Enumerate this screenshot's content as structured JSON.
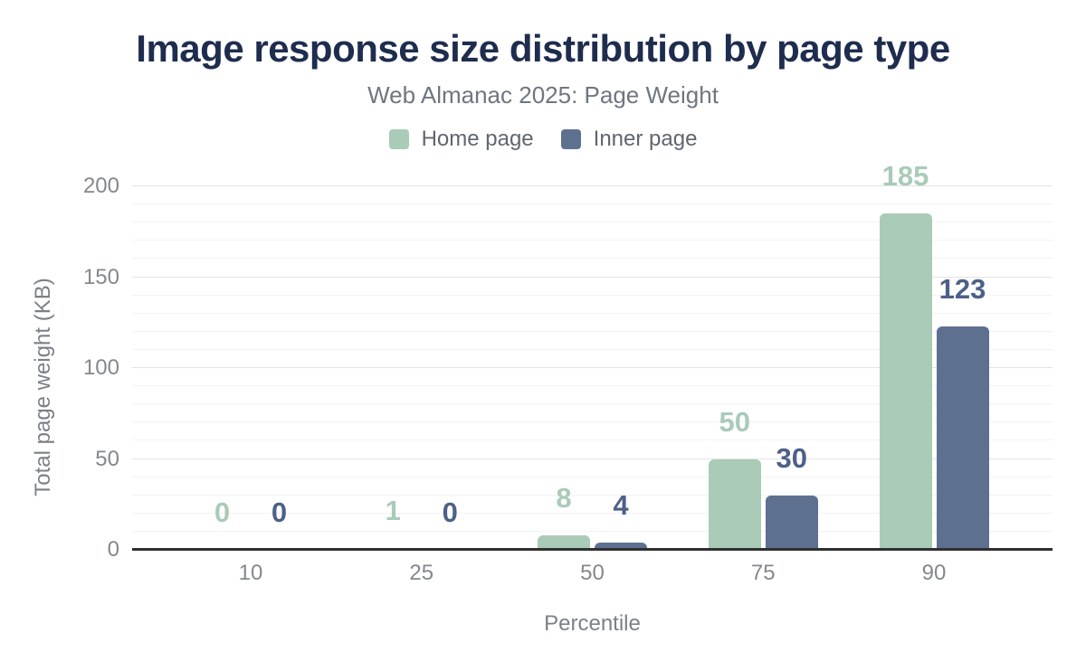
{
  "header": {
    "title": "Image response size distribution by page type",
    "subtitle": "Web Almanac 2025: Page Weight"
  },
  "chart_data": {
    "type": "bar",
    "title": "Image response size distribution by page type",
    "subtitle": "Web Almanac 2025: Page Weight",
    "categories": [
      "10",
      "25",
      "50",
      "75",
      "90"
    ],
    "series": [
      {
        "name": "Home page",
        "color": "#a9cbb8",
        "label_color": "#a9cbb8",
        "values": [
          0,
          1,
          8,
          50,
          185
        ]
      },
      {
        "name": "Inner page",
        "color": "#5d7090",
        "label_color": "#4d6187",
        "values": [
          0,
          0,
          4,
          30,
          123
        ]
      }
    ],
    "xlabel": "Percentile",
    "ylabel": "Total page weight (KB)",
    "ylim": [
      0,
      200
    ],
    "yticks": [
      0,
      50,
      100,
      150,
      200
    ],
    "minor_grid_step": 10,
    "grid": true,
    "legend_position": "top",
    "colors": {
      "title": "#1e2d4e",
      "subtitle": "#6f7680",
      "tick_labels": "#84888e",
      "axis_titles": "#7b8088",
      "axis_line": "#303030",
      "major_grid": "#e3e3e3",
      "minor_grid": "#f3f3f3"
    }
  }
}
